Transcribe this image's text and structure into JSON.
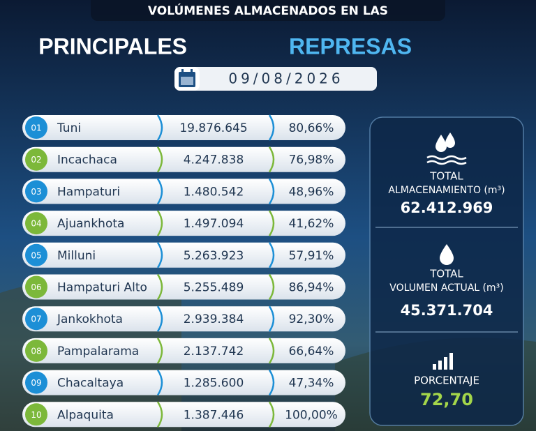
{
  "header": {
    "line1": "VOLÚMENES ALMACENADOS EN LAS",
    "word1": "PRINCIPALES",
    "word2": "REPRESAS",
    "date": "09/08/2026"
  },
  "table": {
    "rows": [
      [
        "01",
        "Tuni",
        "19.876.645",
        "80,66%"
      ],
      [
        "02",
        "Incachaca",
        "4.247.838",
        "76,98%"
      ],
      [
        "03",
        "Hampaturi",
        "1.480.542",
        "48,96%"
      ],
      [
        "04",
        "Ajuankhota",
        "1.497.094",
        "41,62%"
      ],
      [
        "05",
        "Milluni",
        "5.263.923",
        "57,91%"
      ],
      [
        "06",
        "Hampaturi Alto",
        "5.255.489",
        "86,94%"
      ],
      [
        "07",
        "Jankokhota",
        "2.939.384",
        "92,30%"
      ],
      [
        "08",
        "Pampalarama",
        "2.137.742",
        "66,64%"
      ],
      [
        "09",
        "Chacaltaya",
        "1.285.600",
        "47,34%"
      ],
      [
        "10",
        "Alpaquita",
        "1.387.446",
        "100,00%"
      ]
    ]
  },
  "summary": [
    {
      "label1": "TOTAL",
      "label2": "ALMACENAMIENTO (m³)",
      "value": "62.412.969"
    },
    {
      "label1": "TOTAL",
      "label2": "VOLUMEN ACTUAL (m³)",
      "value": "45.371.704"
    },
    {
      "label1": "PORCENTAJE",
      "value": "72,70"
    }
  ]
}
